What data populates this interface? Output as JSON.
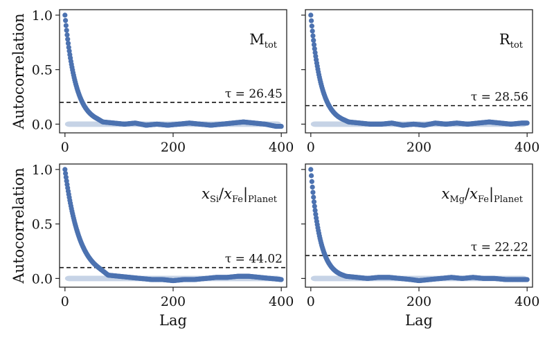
{
  "chart_data": [
    {
      "type": "scatter",
      "panel": "top-left",
      "label": {
        "main": "M",
        "sub": "tot"
      },
      "tau_text": "τ = 26.45",
      "tau": 26.45,
      "threshold": 0.2,
      "xlabel": "",
      "ylabel": "Autocorrelation",
      "xlim": [
        -10,
        410
      ],
      "ylim": [
        -0.08,
        1.05
      ],
      "xticks": [
        "0",
        "200",
        "400"
      ],
      "xtick_values": [
        0,
        200,
        400
      ],
      "yticks": [
        "0.0",
        "0.5",
        "1.0"
      ],
      "ytick_values": [
        0,
        0.5,
        1.0
      ],
      "decay_lag": 20,
      "noise_points": [
        [
          50,
          0.04
        ],
        [
          70,
          0.02
        ],
        [
          90,
          0.01
        ],
        [
          110,
          0.0
        ],
        [
          130,
          0.01
        ],
        [
          150,
          -0.01
        ],
        [
          170,
          0.0
        ],
        [
          190,
          -0.01
        ],
        [
          210,
          0.0
        ],
        [
          230,
          0.01
        ],
        [
          250,
          0.0
        ],
        [
          270,
          -0.01
        ],
        [
          290,
          0.0
        ],
        [
          310,
          0.01
        ],
        [
          330,
          0.02
        ],
        [
          350,
          0.01
        ],
        [
          370,
          0.0
        ],
        [
          390,
          -0.02
        ],
        [
          400,
          -0.02
        ]
      ],
      "band": 0.025
    },
    {
      "type": "scatter",
      "panel": "top-right",
      "label": {
        "main": "R",
        "sub": "tot"
      },
      "tau_text": "τ = 28.56",
      "tau": 28.56,
      "threshold": 0.17,
      "xlabel": "",
      "ylabel": "",
      "xlim": [
        -10,
        410
      ],
      "ylim": [
        -0.08,
        1.05
      ],
      "xticks": [
        "0",
        "200",
        "400"
      ],
      "xtick_values": [
        0,
        200,
        400
      ],
      "yticks": [],
      "ytick_values": [
        0,
        0.5,
        1.0
      ],
      "decay_lag": 19,
      "noise_points": [
        [
          50,
          0.05
        ],
        [
          70,
          0.02
        ],
        [
          90,
          0.01
        ],
        [
          110,
          0.0
        ],
        [
          130,
          0.0
        ],
        [
          150,
          0.01
        ],
        [
          170,
          -0.01
        ],
        [
          190,
          0.0
        ],
        [
          210,
          -0.01
        ],
        [
          230,
          0.01
        ],
        [
          250,
          0.0
        ],
        [
          270,
          0.01
        ],
        [
          290,
          0.0
        ],
        [
          310,
          0.01
        ],
        [
          330,
          0.02
        ],
        [
          350,
          0.01
        ],
        [
          370,
          0.0
        ],
        [
          390,
          0.01
        ],
        [
          400,
          0.01
        ]
      ],
      "band": 0.025
    },
    {
      "type": "scatter",
      "panel": "bottom-left",
      "label": {
        "html": "x<tspan class='sub' dy='5'>Si</tspan><tspan dy='-5'>/x</tspan><tspan class='sub' dy='5'>Fe</tspan><tspan dy='-5'>|</tspan><tspan class='sub' dy='5'>Planet</tspan>"
      },
      "label_parts": [
        "x",
        "Si",
        "/x",
        "Fe",
        "|",
        "Planet"
      ],
      "tau_text": "τ = 44.02",
      "tau": 44.02,
      "threshold": 0.1,
      "xlabel": "Lag",
      "ylabel": "Autocorrelation",
      "xlim": [
        -10,
        410
      ],
      "ylim": [
        -0.08,
        1.05
      ],
      "xticks": [
        "0",
        "200",
        "400"
      ],
      "xtick_values": [
        0,
        200,
        400
      ],
      "yticks": [
        "0.0",
        "0.5",
        "1.0"
      ],
      "ytick_values": [
        0,
        0.5,
        1.0
      ],
      "decay_lag": 27,
      "noise_points": [
        [
          60,
          0.05
        ],
        [
          80,
          0.03
        ],
        [
          100,
          0.02
        ],
        [
          120,
          0.01
        ],
        [
          140,
          0.0
        ],
        [
          160,
          -0.01
        ],
        [
          180,
          -0.01
        ],
        [
          200,
          -0.02
        ],
        [
          220,
          -0.01
        ],
        [
          240,
          -0.01
        ],
        [
          260,
          0.0
        ],
        [
          280,
          0.01
        ],
        [
          300,
          0.01
        ],
        [
          320,
          0.02
        ],
        [
          340,
          0.02
        ],
        [
          360,
          0.01
        ],
        [
          380,
          0.0
        ],
        [
          400,
          -0.01
        ]
      ],
      "band": 0.025
    },
    {
      "type": "scatter",
      "panel": "bottom-right",
      "label_parts": [
        "x",
        "Mg",
        "/x",
        "Fe",
        "|",
        "Planet"
      ],
      "tau_text": "τ = 22.22",
      "tau": 22.22,
      "threshold": 0.21,
      "xlabel": "Lag",
      "ylabel": "",
      "xlim": [
        -10,
        410
      ],
      "ylim": [
        -0.08,
        1.05
      ],
      "xticks": [
        "0",
        "200",
        "400"
      ],
      "xtick_values": [
        0,
        200,
        400
      ],
      "yticks": [],
      "ytick_values": [
        0,
        0.5,
        1.0
      ],
      "decay_lag": 17,
      "noise_points": [
        [
          45,
          0.05
        ],
        [
          65,
          0.02
        ],
        [
          85,
          0.01
        ],
        [
          105,
          0.0
        ],
        [
          125,
          0.01
        ],
        [
          145,
          0.01
        ],
        [
          165,
          0.0
        ],
        [
          185,
          -0.01
        ],
        [
          200,
          -0.02
        ],
        [
          220,
          -0.01
        ],
        [
          240,
          0.0
        ],
        [
          260,
          0.01
        ],
        [
          280,
          0.0
        ],
        [
          300,
          0.01
        ],
        [
          320,
          0.0
        ],
        [
          340,
          0.0
        ],
        [
          360,
          -0.01
        ],
        [
          380,
          -0.01
        ],
        [
          400,
          -0.01
        ]
      ],
      "band": 0.025
    }
  ],
  "colors": {
    "points": "#4c72b0",
    "band": "#c6d3e6",
    "threshold": "#111111",
    "axes": "#222222"
  }
}
